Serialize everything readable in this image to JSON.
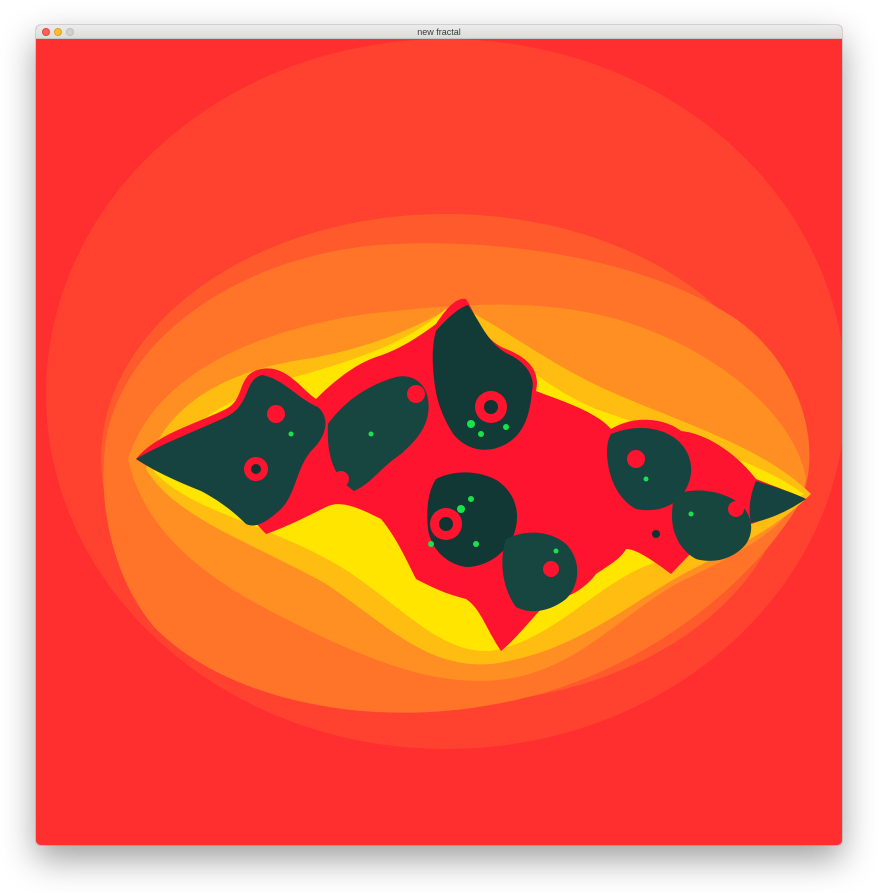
{
  "window": {
    "title": "new fractal"
  },
  "controls": {
    "close_icon": "close-circle",
    "minimize_icon": "minimize-circle",
    "zoom_icon": "zoom-circle"
  },
  "colors": {
    "outer": "#ff2f2f",
    "band_1": "#ff4230",
    "band_2": "#ff5a2c",
    "band_3": "#ff7428",
    "band_4": "#ff8f22",
    "band_5": "#ffbd12",
    "band_6": "#ffe500",
    "body_red": "#ff1430",
    "body_dark": "#0f3d3a",
    "highlight_green": "#19e34a"
  }
}
